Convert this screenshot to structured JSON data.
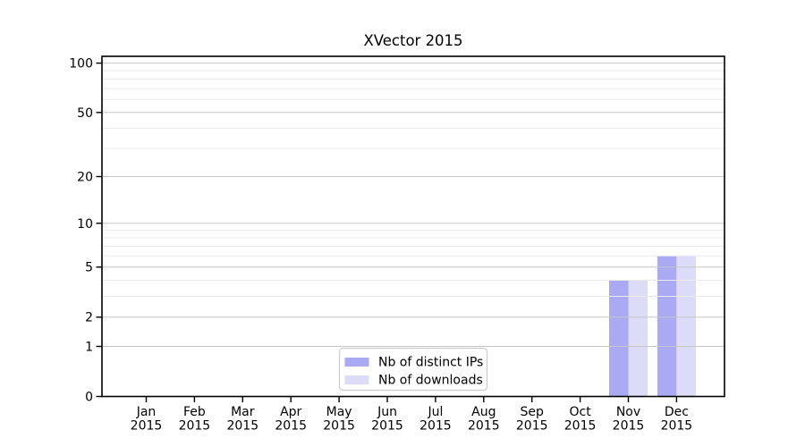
{
  "chart_data": {
    "type": "bar",
    "title": "XVector 2015",
    "year": "2015",
    "months": [
      "Jan",
      "Feb",
      "Mar",
      "Apr",
      "May",
      "Jun",
      "Jul",
      "Aug",
      "Sep",
      "Oct",
      "Nov",
      "Dec"
    ],
    "categories": [
      "Jan 2015",
      "Feb 2015",
      "Mar 2015",
      "Apr 2015",
      "May 2015",
      "Jun 2015",
      "Jul 2015",
      "Aug 2015",
      "Sep 2015",
      "Oct 2015",
      "Nov 2015",
      "Dec 2015"
    ],
    "series": [
      {
        "name": "Nb of distinct IPs",
        "key": "distinct-ips",
        "color": "#a9a9f4",
        "values": [
          0,
          0,
          0,
          0,
          0,
          0,
          0,
          0,
          0,
          0,
          4,
          6
        ]
      },
      {
        "name": "Nb of downloads",
        "key": "downloads",
        "color": "#dcdcf9",
        "values": [
          0,
          0,
          0,
          0,
          0,
          0,
          0,
          0,
          0,
          0,
          4,
          6
        ]
      }
    ],
    "yscale": "log1p",
    "ylim": [
      0,
      110
    ],
    "yticks_major": [
      0,
      1,
      2,
      5,
      10,
      20,
      50,
      100
    ],
    "yticks_minor": [
      3,
      4,
      6,
      7,
      8,
      9,
      30,
      40,
      60,
      70,
      80,
      90
    ],
    "xlabel": "",
    "ylabel": "",
    "grid": true,
    "grid_above_bars": true,
    "legend": {
      "position": "lower-center-inside",
      "entries": [
        "Nb of distinct IPs",
        "Nb of downloads"
      ]
    },
    "colors": {
      "bar_distinct_ips": "#a9a9f4",
      "bar_downloads": "#dcdcf9",
      "grid_major": "#c6c6c6",
      "grid_minor": "#eaeaea",
      "axis": "#000000",
      "text": "#000000",
      "legend_border": "#cccccc",
      "background": "#ffffff"
    }
  }
}
